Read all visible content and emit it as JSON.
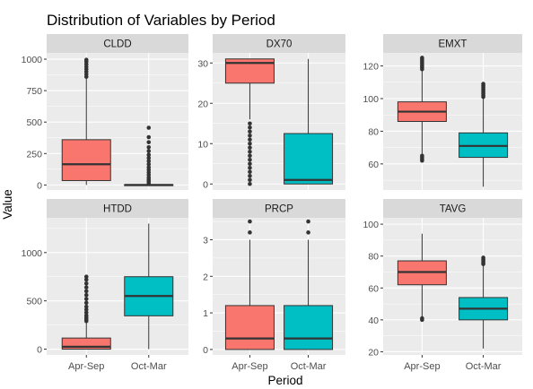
{
  "chart_data": {
    "type": "boxplot",
    "title": "Distribution of Variables by Period",
    "xlabel": "Period",
    "ylabel": "Value",
    "categories": [
      "Apr-Sep",
      "Oct-Mar"
    ],
    "fill_colors": {
      "Apr-Sep": "#F8766D",
      "Oct-Mar": "#00BFC4"
    },
    "panel_background": "#EBEBEB",
    "strip_background": "#D9D9D9",
    "grid": true,
    "facets": [
      {
        "name": "CLDD",
        "ylim": [
          -40,
          1050
        ],
        "yticks": [
          0,
          250,
          500,
          750,
          1000
        ],
        "boxes": [
          {
            "category": "Apr-Sep",
            "q1": 35,
            "median": 165,
            "q3": 360,
            "whisker_low": 0,
            "whisker_high": 850,
            "outliers": [
              860,
              880,
              900,
              920,
              940,
              960,
              980,
              995
            ]
          },
          {
            "category": "Oct-Mar",
            "q1": 0,
            "median": 0,
            "q3": 3,
            "whisker_low": 0,
            "whisker_high": 8,
            "outliers": [
              15,
              30,
              45,
              60,
              80,
              100,
              120,
              140,
              165,
              190,
              215,
              240,
              270,
              300,
              340,
              380,
              455
            ]
          }
        ]
      },
      {
        "name": "DX70",
        "ylim": [
          -1.5,
          32.5
        ],
        "yticks": [
          0,
          10,
          20,
          30
        ],
        "boxes": [
          {
            "category": "Apr-Sep",
            "q1": 25,
            "median": 30,
            "q3": 31,
            "whisker_low": 16,
            "whisker_high": 31,
            "outliers": [
              0,
              1,
              2,
              3,
              4,
              5,
              6,
              7,
              8,
              9,
              10,
              11,
              12,
              13,
              14,
              15
            ]
          },
          {
            "category": "Oct-Mar",
            "q1": 0,
            "median": 1,
            "q3": 12.5,
            "whisker_low": 0,
            "whisker_high": 31,
            "outliers": []
          }
        ]
      },
      {
        "name": "EMXT",
        "ylim": [
          44,
          128
        ],
        "yticks": [
          60,
          80,
          100,
          120
        ],
        "boxes": [
          {
            "category": "Apr-Sep",
            "q1": 86,
            "median": 92,
            "q3": 98,
            "whisker_low": 66,
            "whisker_high": 117,
            "outliers": [
              62,
              63,
              64,
              65,
              118,
              119,
              120,
              121,
              122,
              123,
              124,
              125
            ]
          },
          {
            "category": "Oct-Mar",
            "q1": 64,
            "median": 71,
            "q3": 79,
            "whisker_low": 46,
            "whisker_high": 100,
            "outliers": [
              101,
              102,
              103,
              104,
              105,
              106,
              107,
              108,
              109
            ]
          }
        ]
      },
      {
        "name": "HTDD",
        "ylim": [
          -60,
          1360
        ],
        "yticks": [
          0,
          500,
          1000
        ],
        "boxes": [
          {
            "category": "Apr-Sep",
            "q1": 0,
            "median": 25,
            "q3": 115,
            "whisker_low": 0,
            "whisker_high": 280,
            "outliers": [
              290,
              310,
              330,
              350,
              380,
              410,
              440,
              480,
              520,
              560,
              600,
              640,
              680,
              720,
              750
            ]
          },
          {
            "category": "Oct-Mar",
            "q1": 345,
            "median": 550,
            "q3": 750,
            "whisker_low": 0,
            "whisker_high": 1300,
            "outliers": []
          }
        ]
      },
      {
        "name": "PRCP",
        "ylim": [
          -0.15,
          3.6
        ],
        "yticks": [
          0,
          1,
          2,
          3
        ],
        "boxes": [
          {
            "category": "Apr-Sep",
            "q1": 0,
            "median": 0.3,
            "q3": 1.2,
            "whisker_low": 0,
            "whisker_high": 3.0,
            "outliers": [
              3.2,
              3.5
            ]
          },
          {
            "category": "Oct-Mar",
            "q1": 0,
            "median": 0.3,
            "q3": 1.2,
            "whisker_low": 0,
            "whisker_high": 3.0,
            "outliers": [
              3.2,
              3.5
            ]
          }
        ]
      },
      {
        "name": "TAVG",
        "ylim": [
          18,
          104
        ],
        "yticks": [
          20,
          40,
          60,
          80,
          100
        ],
        "boxes": [
          {
            "category": "Apr-Sep",
            "q1": 62,
            "median": 70,
            "q3": 77,
            "whisker_low": 42,
            "whisker_high": 94,
            "outliers": [
              40,
              41
            ]
          },
          {
            "category": "Oct-Mar",
            "q1": 40,
            "median": 47,
            "q3": 54,
            "whisker_low": 22,
            "whisker_high": 74,
            "outliers": [
              75,
              76,
              77,
              78,
              79
            ]
          }
        ]
      }
    ]
  }
}
